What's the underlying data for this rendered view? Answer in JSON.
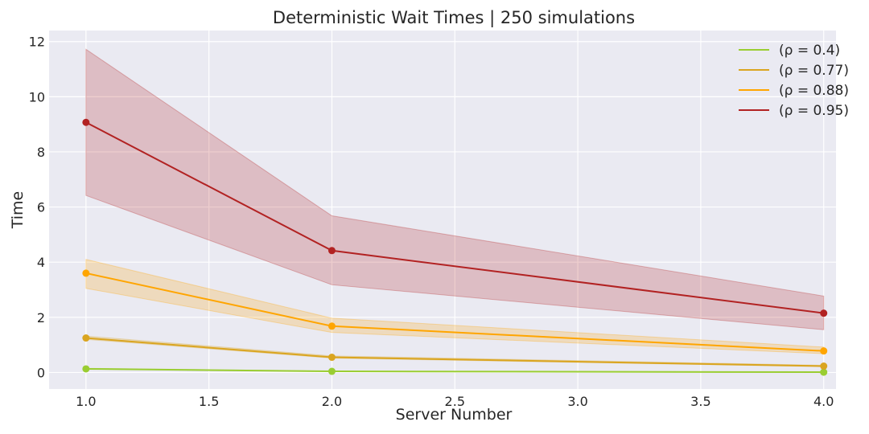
{
  "chart_data": {
    "type": "line",
    "title": "Deterministic Wait Times | 250 simulations",
    "xlabel": "Server Number",
    "ylabel": "Time",
    "x": [
      1,
      2,
      4
    ],
    "xlim": [
      0.85,
      4.05
    ],
    "ylim": [
      -0.6,
      12.4
    ],
    "xticks": [
      1.0,
      1.5,
      2.0,
      2.5,
      3.0,
      3.5,
      4.0
    ],
    "xtick_labels": [
      "1.0",
      "1.5",
      "2.0",
      "2.5",
      "3.0",
      "3.5",
      "4.0"
    ],
    "yticks": [
      0,
      2,
      4,
      6,
      8,
      10,
      12
    ],
    "ytick_labels": [
      "0",
      "2",
      "4",
      "6",
      "8",
      "10",
      "12"
    ],
    "grid": true,
    "legend_position": "top-right",
    "background": "#eaeaf2",
    "series": [
      {
        "name": "(ρ = 0.4)",
        "color": "#9acd32",
        "values": [
          0.13,
          0.04,
          0.01
        ],
        "lower": [
          0.12,
          0.04,
          0.01
        ],
        "upper": [
          0.15,
          0.05,
          0.02
        ]
      },
      {
        "name": "(ρ = 0.77)",
        "color": "#daa520",
        "values": [
          1.25,
          0.55,
          0.23
        ],
        "lower": [
          1.2,
          0.52,
          0.21
        ],
        "upper": [
          1.32,
          0.6,
          0.26
        ]
      },
      {
        "name": "(ρ = 0.88)",
        "color": "#ffa500",
        "values": [
          3.6,
          1.68,
          0.78
        ],
        "lower": [
          3.05,
          1.45,
          0.68
        ],
        "upper": [
          4.1,
          1.97,
          0.92
        ]
      },
      {
        "name": "(ρ = 0.95)",
        "color": "#b22222",
        "values": [
          9.07,
          4.42,
          2.15
        ],
        "lower": [
          6.42,
          3.18,
          1.55
        ],
        "upper": [
          11.72,
          5.68,
          2.77
        ]
      }
    ]
  }
}
